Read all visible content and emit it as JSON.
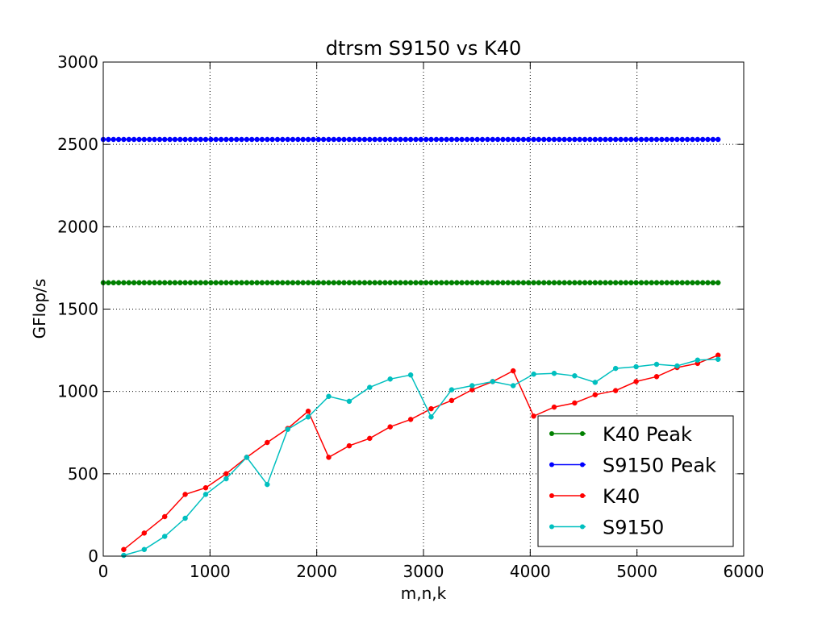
{
  "chart_data": {
    "type": "line",
    "title": "dtrsm S9150 vs K40",
    "xlabel": "m,n,k",
    "ylabel": "GFlop/s",
    "xlim": [
      0,
      6000
    ],
    "ylim": [
      0,
      3000
    ],
    "xticks": [
      0,
      1000,
      2000,
      3000,
      4000,
      5000,
      6000
    ],
    "yticks": [
      0,
      500,
      1000,
      1500,
      2000,
      2500,
      3000
    ],
    "grid": true,
    "legend_position": "lower-right",
    "series": [
      {
        "name": "K40 Peak",
        "color": "#008000",
        "constant": 1660,
        "x_range": [
          0,
          5760
        ],
        "point_count": 121
      },
      {
        "name": "S9150 Peak",
        "color": "#0000ff",
        "constant": 2530,
        "x_range": [
          0,
          5760
        ],
        "point_count": 121
      },
      {
        "name": "K40",
        "color": "#ff0000",
        "x": [
          192,
          384,
          576,
          768,
          960,
          1152,
          1344,
          1536,
          1728,
          1920,
          2112,
          2304,
          2496,
          2688,
          2880,
          3072,
          3264,
          3456,
          3648,
          3840,
          4032,
          4224,
          4416,
          4608,
          4800,
          4992,
          5184,
          5376,
          5568,
          5760
        ],
        "y": [
          40,
          140,
          240,
          375,
          415,
          500,
          600,
          690,
          775,
          880,
          600,
          670,
          715,
          785,
          830,
          895,
          945,
          1010,
          1060,
          1125,
          850,
          905,
          930,
          980,
          1005,
          1060,
          1090,
          1145,
          1170,
          1220
        ]
      },
      {
        "name": "S9150",
        "color": "#00bfbf",
        "x": [
          192,
          384,
          576,
          768,
          960,
          1152,
          1344,
          1536,
          1728,
          1920,
          2112,
          2304,
          2496,
          2688,
          2880,
          3072,
          3264,
          3456,
          3648,
          3840,
          4032,
          4224,
          4416,
          4608,
          4800,
          4992,
          5184,
          5376,
          5568,
          5760
        ],
        "y": [
          5,
          40,
          120,
          230,
          375,
          470,
          600,
          435,
          770,
          845,
          970,
          940,
          1025,
          1075,
          1100,
          845,
          1010,
          1035,
          1060,
          1035,
          1105,
          1110,
          1095,
          1055,
          1140,
          1150,
          1165,
          1155,
          1190,
          1195
        ]
      }
    ]
  }
}
